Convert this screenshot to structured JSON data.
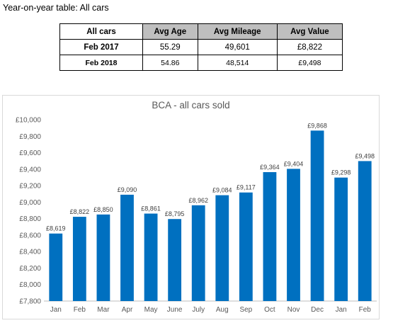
{
  "heading": "Year-on-year table: All cars",
  "table": {
    "headers": [
      "All cars",
      "Avg Age",
      "Avg Mileage",
      "Avg Value"
    ],
    "rows": [
      [
        "Feb 2017",
        "55.29",
        "49,601",
        "£8,822"
      ],
      [
        "Feb 2018",
        "54.86",
        "48,514",
        "£9,498"
      ]
    ]
  },
  "chart_data": {
    "type": "bar",
    "title": "BCA - all cars sold",
    "categories": [
      "Jan",
      "Feb",
      "Mar",
      "Apr",
      "May",
      "June",
      "July",
      "Aug",
      "Sep",
      "Oct",
      "Nov",
      "Dec",
      "Jan",
      "Feb"
    ],
    "values": [
      8619,
      8822,
      8850,
      9090,
      8861,
      8795,
      8962,
      9084,
      9117,
      9364,
      9404,
      9868,
      9298,
      9498
    ],
    "data_labels": [
      "£8,619",
      "£8,822",
      "£8,850",
      "£9,090",
      "£8,861",
      "£8,795",
      "£8,962",
      "£9,084",
      "£9,117",
      "£9,364",
      "£9,404",
      "£9,868",
      "£9,298",
      "£9,498"
    ],
    "yticks": [
      7800,
      8000,
      8200,
      8400,
      8600,
      8800,
      9000,
      9200,
      9400,
      9600,
      9800,
      10000
    ],
    "ytick_labels": [
      "£7,800",
      "£8,000",
      "£8,200",
      "£8,400",
      "£8,600",
      "£8,800",
      "£9,000",
      "£9,200",
      "£9,400",
      "£9,600",
      "£9,800",
      "£10,000"
    ],
    "ylim": [
      7800,
      10000
    ],
    "xlabel": "",
    "ylabel": "",
    "grid": false,
    "bar_color": "#0070c0"
  }
}
